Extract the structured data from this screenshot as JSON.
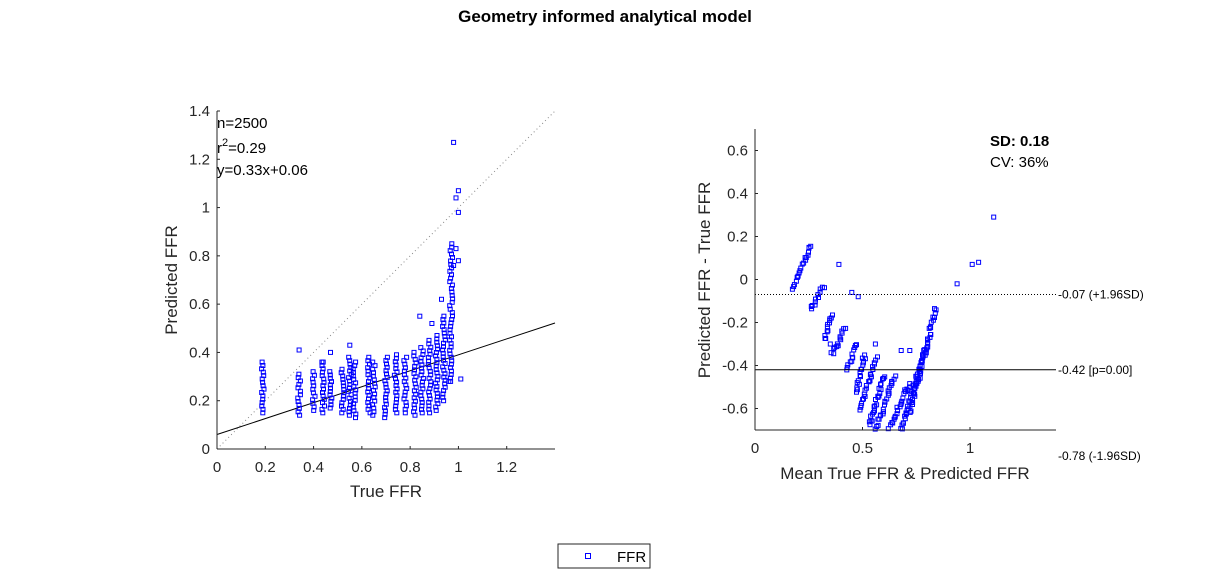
{
  "figure": {
    "title": "Geometry informed analytical model",
    "legend_label": "FFR",
    "marker_color": "#0000ff"
  },
  "chart_data": [
    {
      "type": "scatter",
      "xlabel": "True FFR",
      "ylabel": "Predicted FFR",
      "xlim": [
        0,
        1.4
      ],
      "ylim": [
        0,
        1.4
      ],
      "xticks": [
        "0",
        "0.2",
        "0.4",
        "0.6",
        "0.8",
        "1",
        "1.2"
      ],
      "yticks": [
        "0",
        "0.2",
        "0.4",
        "0.6",
        "0.8",
        "1",
        "1.2",
        "1.4"
      ],
      "annotations": {
        "n": "n=2500",
        "r_prefix": "r",
        "r_sup": "2",
        "r_value": "=0.29",
        "fit": "y=0.33x+0.06"
      },
      "fit_line": {
        "slope": 0.33,
        "intercept": 0.06
      },
      "identity_line": true,
      "series": [
        {
          "name": "FFR",
          "columns": [
            [
              0.19,
              0.15,
              0.36
            ],
            [
              0.34,
              0.14,
              0.31
            ],
            [
              0.4,
              0.16,
              0.32
            ],
            [
              0.44,
              0.15,
              0.36
            ],
            [
              0.47,
              0.17,
              0.32
            ],
            [
              0.52,
              0.15,
              0.33
            ],
            [
              0.55,
              0.14,
              0.38
            ],
            [
              0.57,
              0.13,
              0.36
            ],
            [
              0.63,
              0.15,
              0.38
            ],
            [
              0.65,
              0.14,
              0.36
            ],
            [
              0.7,
              0.13,
              0.38
            ],
            [
              0.74,
              0.15,
              0.39
            ],
            [
              0.78,
              0.15,
              0.38
            ],
            [
              0.82,
              0.14,
              0.4
            ],
            [
              0.85,
              0.15,
              0.42
            ],
            [
              0.88,
              0.15,
              0.45
            ],
            [
              0.91,
              0.16,
              0.47
            ],
            [
              0.94,
              0.2,
              0.55
            ],
            [
              0.97,
              0.28,
              0.85
            ]
          ],
          "points": [
            [
              0.34,
              0.41
            ],
            [
              0.44,
              0.36
            ],
            [
              0.47,
              0.4
            ],
            [
              0.55,
              0.43
            ],
            [
              0.84,
              0.55
            ],
            [
              0.89,
              0.52
            ],
            [
              0.93,
              0.62
            ],
            [
              0.98,
              1.27
            ],
            [
              0.99,
              1.04
            ],
            [
              1.0,
              1.07
            ],
            [
              1.0,
              0.98
            ],
            [
              0.99,
              0.83
            ],
            [
              1.0,
              0.78
            ],
            [
              0.98,
              0.76
            ],
            [
              1.01,
              0.29
            ],
            [
              0.96,
              0.28
            ]
          ]
        }
      ]
    },
    {
      "type": "scatter",
      "xlabel": "Mean True FFR & Predicted FFR",
      "ylabel": "Predicted FFR - True FFR",
      "xlim": [
        0,
        1.4
      ],
      "ylim": [
        -0.7,
        0.7
      ],
      "xticks": [
        "0",
        "0.5",
        "1"
      ],
      "yticks": [
        "0.6",
        "0.4",
        "0.2",
        "0",
        "-0.2",
        "-0.4",
        "-0.6"
      ],
      "stats": {
        "sd": "SD: 0.18",
        "cv": "CV: 36%"
      },
      "reference_lines": [
        {
          "value": -0.07,
          "label": "-0.07 (+1.96SD)",
          "style": "dotted"
        },
        {
          "value": -0.42,
          "label": "-0.42 [p=0.00]",
          "style": "solid"
        },
        {
          "value": -0.78,
          "label": "-0.78 (-1.96SD)",
          "style": "offscale"
        }
      ],
      "series": [
        {
          "name": "FFR",
          "bands": [
            [
              0.18,
              -0.04,
              0.26,
              0.16
            ],
            [
              0.26,
              -0.14,
              0.32,
              -0.03
            ],
            [
              0.32,
              -0.28,
              0.36,
              -0.16
            ],
            [
              0.36,
              -0.35,
              0.42,
              -0.22
            ],
            [
              0.43,
              -0.42,
              0.47,
              -0.3
            ],
            [
              0.47,
              -0.52,
              0.51,
              -0.35
            ],
            [
              0.49,
              -0.6,
              0.56,
              -0.38
            ],
            [
              0.53,
              -0.68,
              0.6,
              -0.45
            ],
            [
              0.56,
              -0.7,
              0.65,
              -0.45
            ],
            [
              0.62,
              -0.7,
              0.72,
              -0.48
            ],
            [
              0.68,
              -0.7,
              0.8,
              -0.3
            ],
            [
              0.72,
              -0.62,
              0.84,
              -0.14
            ]
          ],
          "points": [
            [
              0.39,
              0.07
            ],
            [
              0.45,
              -0.06
            ],
            [
              0.48,
              -0.08
            ],
            [
              0.35,
              -0.3
            ],
            [
              0.57,
              -0.36
            ],
            [
              0.68,
              -0.33
            ],
            [
              0.72,
              -0.33
            ],
            [
              0.94,
              -0.02
            ],
            [
              1.01,
              0.07
            ],
            [
              1.04,
              0.08
            ],
            [
              1.11,
              0.29
            ],
            [
              0.56,
              -0.3
            ]
          ]
        }
      ]
    }
  ]
}
